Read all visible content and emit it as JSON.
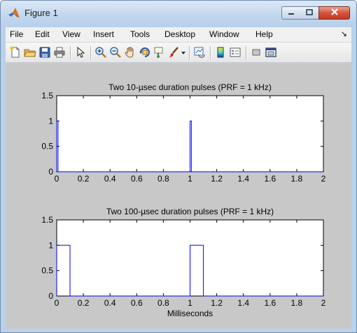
{
  "window": {
    "title": "Figure 1",
    "icon": "matlab-logo-icon",
    "controls": [
      "minimize-icon",
      "maximize-icon",
      "close-icon"
    ]
  },
  "menu": {
    "items": [
      "File",
      "Edit",
      "View",
      "Insert",
      "Tools",
      "Desktop",
      "Window",
      "Help"
    ],
    "dock_arrow": "↘"
  },
  "toolbar": {
    "buttons": [
      "new-figure-icon",
      "open-file-icon",
      "save-icon",
      "print-icon",
      "edit-plot-arrow-icon",
      "zoom-in-icon",
      "zoom-out-icon",
      "pan-hand-icon",
      "rotate-3d-icon",
      "data-cursor-icon",
      "brush-icon",
      "link-plot-icon",
      "colorbar-icon",
      "legend-icon",
      "hide-plot-tools-icon",
      "show-plot-tools-icon"
    ]
  },
  "colors": {
    "line": "#0000ff",
    "figure_background": "#c8c8c8",
    "axes_background": "#ffffff"
  },
  "chart_data": [
    {
      "type": "line",
      "title": "Two 10-µsec duration pulses (PRF = 1 kHz)",
      "xlabel": "",
      "ylabel": "",
      "xlim": [
        0,
        2
      ],
      "ylim": [
        0,
        1.5
      ],
      "xticks": [
        0,
        0.2,
        0.4,
        0.6,
        0.8,
        1,
        1.2,
        1.4,
        1.6,
        1.8,
        2
      ],
      "xtick_labels": [
        "0",
        "0.2",
        "0.4",
        "0.6",
        "0.8",
        "1",
        "1.2",
        "1.4",
        "1.6",
        "1.8",
        "2"
      ],
      "yticks": [
        0,
        0.5,
        1,
        1.5
      ],
      "ytick_labels": [
        "0",
        "0.5",
        "1",
        "1.5"
      ],
      "grid": false,
      "series": [
        {
          "x": [
            0,
            0,
            0.01,
            0.01,
            1.0,
            1.0,
            1.01,
            1.01,
            2.0
          ],
          "y": [
            0,
            1,
            1,
            0,
            0,
            1,
            1,
            0,
            0
          ]
        }
      ]
    },
    {
      "type": "line",
      "title": "Two 100-µsec duration pulses (PRF = 1 kHz)",
      "xlabel": "Milliseconds",
      "ylabel": "",
      "xlim": [
        0,
        2
      ],
      "ylim": [
        0,
        1.5
      ],
      "xticks": [
        0,
        0.2,
        0.4,
        0.6,
        0.8,
        1,
        1.2,
        1.4,
        1.6,
        1.8,
        2
      ],
      "xtick_labels": [
        "0",
        "0.2",
        "0.4",
        "0.6",
        "0.8",
        "1",
        "1.2",
        "1.4",
        "1.6",
        "1.8",
        "2"
      ],
      "yticks": [
        0,
        0.5,
        1,
        1.5
      ],
      "ytick_labels": [
        "0",
        "0.5",
        "1",
        "1.5"
      ],
      "grid": false,
      "series": [
        {
          "x": [
            0,
            0,
            0.1,
            0.1,
            1.0,
            1.0,
            1.1,
            1.1,
            2.0
          ],
          "y": [
            0,
            1,
            1,
            0,
            0,
            1,
            1,
            0,
            0
          ]
        }
      ]
    }
  ]
}
